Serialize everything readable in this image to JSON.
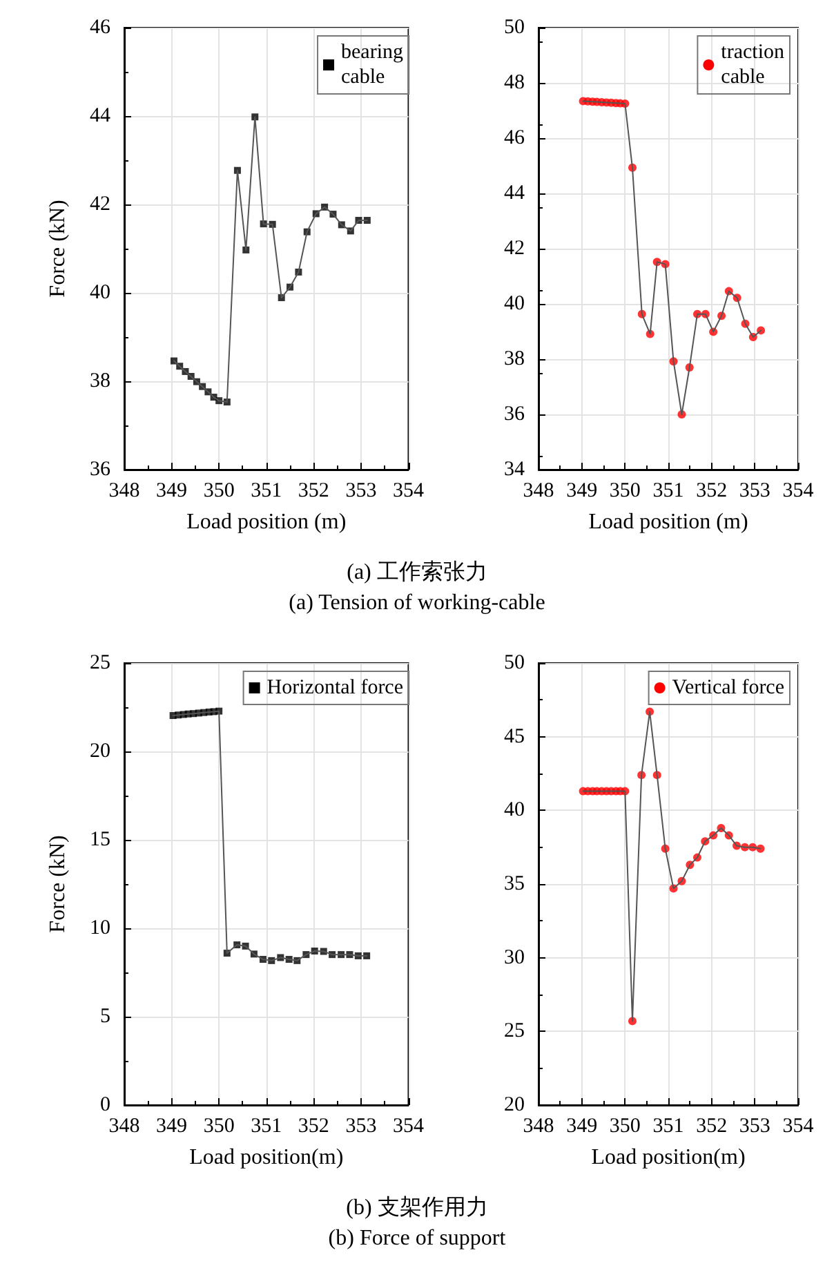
{
  "chart_data": [
    {
      "type": "line",
      "xlabel": "Load position (m)",
      "ylabel": "Force (kN)",
      "xlim": [
        348,
        354
      ],
      "xticks": [
        348,
        349,
        350,
        351,
        352,
        353,
        354
      ],
      "ylim": [
        36,
        46
      ],
      "yticks": [
        36,
        38,
        40,
        42,
        44,
        46
      ],
      "grid": true,
      "legend": "top right",
      "marker": "square",
      "line_style": "solid",
      "x": [
        349.05,
        349.17,
        349.29,
        349.41,
        349.53,
        349.65,
        349.77,
        349.89,
        350.0,
        350.17,
        350.39,
        350.57,
        350.76,
        350.94,
        351.13,
        351.32,
        351.5,
        351.68,
        351.86,
        352.05,
        352.23,
        352.41,
        352.59,
        352.78,
        352.95,
        353.13
      ],
      "series": [
        {
          "name": "bearing\ncable",
          "color": "#000000",
          "values": [
            38.46,
            38.34,
            38.22,
            38.11,
            37.99,
            37.88,
            37.76,
            37.64,
            37.56,
            37.53,
            42.77,
            40.97,
            43.98,
            41.56,
            41.55,
            39.89,
            40.13,
            40.47,
            41.38,
            41.79,
            41.94,
            41.78,
            41.54,
            41.4,
            41.64,
            41.64
          ]
        }
      ],
      "annotations": [
        "(a) 工作索张力",
        "(a) Tension of working-cable"
      ]
    },
    {
      "type": "line",
      "xlabel": "Load position (m)",
      "xlim": [
        348,
        354
      ],
      "xticks": [
        348,
        349,
        350,
        351,
        352,
        353,
        354
      ],
      "ylim": [
        34,
        50
      ],
      "yticks": [
        34,
        36,
        38,
        40,
        42,
        44,
        46,
        48,
        50
      ],
      "grid": true,
      "legend": "top right",
      "marker": "circle",
      "line_style": "solid",
      "x": [
        349.03,
        349.14,
        349.25,
        349.35,
        349.46,
        349.57,
        349.68,
        349.79,
        349.89,
        350.0,
        350.17,
        350.39,
        350.58,
        350.74,
        350.93,
        351.12,
        351.31,
        351.49,
        351.67,
        351.86,
        352.04,
        352.23,
        352.4,
        352.59,
        352.78,
        352.96,
        353.14
      ],
      "series": [
        {
          "name": "traction\ncable",
          "color": "#ff0000",
          "values": [
            47.34,
            47.33,
            47.32,
            47.31,
            47.3,
            47.29,
            47.28,
            47.27,
            47.26,
            47.25,
            44.93,
            39.63,
            38.91,
            41.52,
            41.44,
            37.92,
            36.0,
            37.7,
            39.63,
            39.63,
            38.99,
            39.57,
            40.46,
            40.22,
            39.28,
            38.8,
            39.04
          ]
        }
      ]
    },
    {
      "type": "line",
      "xlabel": "Load position(m)",
      "ylabel": "Force (kN)",
      "xlim": [
        348,
        354
      ],
      "xticks": [
        348,
        349,
        350,
        351,
        352,
        353,
        354
      ],
      "ylim": [
        0,
        25
      ],
      "yticks": [
        0,
        5,
        10,
        15,
        20,
        25
      ],
      "grid": true,
      "legend": "top right",
      "marker": "square",
      "line_style": "solid",
      "x": [
        349.03,
        349.14,
        349.25,
        349.35,
        349.46,
        349.57,
        349.68,
        349.79,
        349.89,
        350.0,
        350.17,
        350.38,
        350.56,
        350.74,
        350.93,
        351.11,
        351.3,
        351.48,
        351.65,
        351.84,
        352.02,
        352.21,
        352.39,
        352.58,
        352.76,
        352.94,
        353.12
      ],
      "series": [
        {
          "name": "Horizontal force",
          "color": "#000000",
          "values": [
            22.03,
            22.06,
            22.09,
            22.12,
            22.14,
            22.17,
            22.2,
            22.23,
            22.25,
            22.28,
            8.59,
            9.06,
            8.99,
            8.54,
            8.24,
            8.17,
            8.34,
            8.24,
            8.17,
            8.51,
            8.71,
            8.69,
            8.51,
            8.51,
            8.51,
            8.44,
            8.44
          ]
        }
      ],
      "annotations": [
        "(b) 支架作用力",
        "(b) Force of support"
      ]
    },
    {
      "type": "line",
      "xlabel": "Load position(m)",
      "xlim": [
        348,
        354
      ],
      "xticks": [
        348,
        349,
        350,
        351,
        352,
        353,
        354
      ],
      "ylim": [
        20,
        50
      ],
      "yticks": [
        20,
        25,
        30,
        35,
        40,
        45,
        50
      ],
      "grid": true,
      "legend": "top right",
      "marker": "circle",
      "line_style": "solid",
      "x": [
        349.03,
        349.14,
        349.25,
        349.35,
        349.46,
        349.57,
        349.68,
        349.79,
        349.89,
        350.0,
        350.17,
        350.38,
        350.57,
        350.74,
        350.93,
        351.12,
        351.31,
        351.5,
        351.67,
        351.85,
        352.04,
        352.22,
        352.4,
        352.58,
        352.77,
        352.95,
        353.13
      ],
      "series": [
        {
          "name": "Vertical force",
          "color": "#ff0000",
          "values": [
            41.3,
            41.3,
            41.3,
            41.3,
            41.3,
            41.3,
            41.3,
            41.3,
            41.3,
            41.3,
            25.7,
            42.4,
            46.7,
            42.4,
            37.4,
            34.7,
            35.2,
            36.3,
            36.8,
            37.9,
            38.3,
            38.8,
            38.3,
            37.6,
            37.5,
            37.5,
            37.4
          ]
        }
      ]
    }
  ]
}
